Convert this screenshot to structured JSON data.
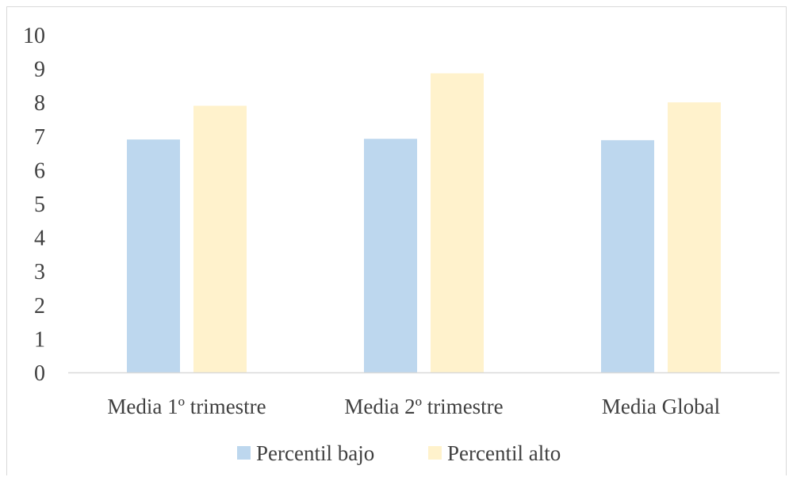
{
  "chart_data": {
    "type": "bar",
    "title": "",
    "xlabel": "",
    "ylabel": "",
    "categories": [
      "Media 1º trimestre",
      "Media 2º trimestre",
      "Media Global"
    ],
    "series": [
      {
        "name": "Percentil bajo",
        "values": [
          6.9,
          6.92,
          6.88
        ],
        "color": "#bdd7ee"
      },
      {
        "name": "Percentil alto",
        "values": [
          7.9,
          8.86,
          8.0
        ],
        "color": "#fff2cc"
      }
    ],
    "ylim": [
      0,
      10
    ],
    "yticks": [
      "0",
      "1",
      "2",
      "3",
      "4",
      "5",
      "6",
      "7",
      "8",
      "9",
      "10"
    ],
    "grid": false,
    "legend_position": "bottom",
    "axis_color": "#d9d9d9"
  }
}
